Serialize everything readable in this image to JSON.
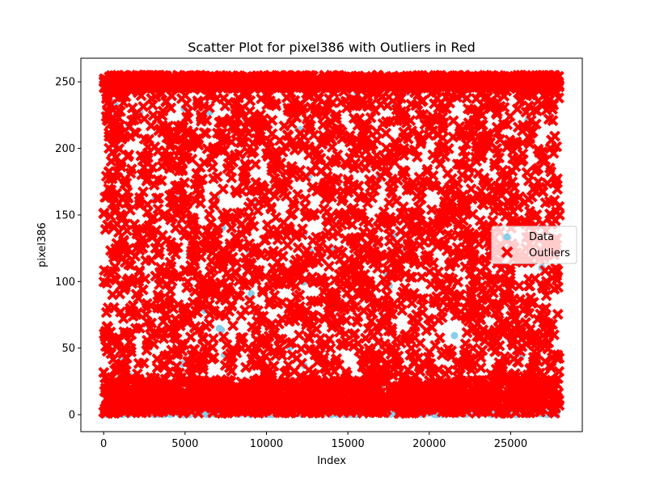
{
  "chart_data": {
    "type": "scatter",
    "title": "Scatter Plot for pixel386 with Outliers in Red",
    "xlabel": "Index",
    "ylabel": "pixel386",
    "xlim": [
      -1400,
      29400
    ],
    "ylim": [
      -12.75,
      267.75
    ],
    "x_ticks": [
      0,
      5000,
      10000,
      15000,
      20000,
      25000
    ],
    "y_ticks": [
      0,
      50,
      100,
      150,
      200,
      250
    ],
    "legend_position": "center-right",
    "legend": [
      {
        "label": "Data",
        "marker": "circle",
        "color": "#87ceeb"
      },
      {
        "label": "Outliers",
        "marker": "x",
        "color": "#ff0000"
      }
    ],
    "n_points": 28000,
    "series": [
      {
        "name": "Data",
        "color": "#87ceeb",
        "marker": "circle",
        "note_values": "all points; values are the same as outliers except zero-valued points which appear as light-blue band near 0",
        "x_range": [
          0,
          28000
        ],
        "y_range": [
          0,
          255
        ]
      },
      {
        "name": "Outliers",
        "color": "#ff0000",
        "marker": "x",
        "x_range": [
          0,
          28000
        ],
        "y_range": [
          1,
          255
        ],
        "dense_bands": [
          [
            240,
            255
          ],
          [
            0,
            20
          ]
        ]
      }
    ]
  }
}
